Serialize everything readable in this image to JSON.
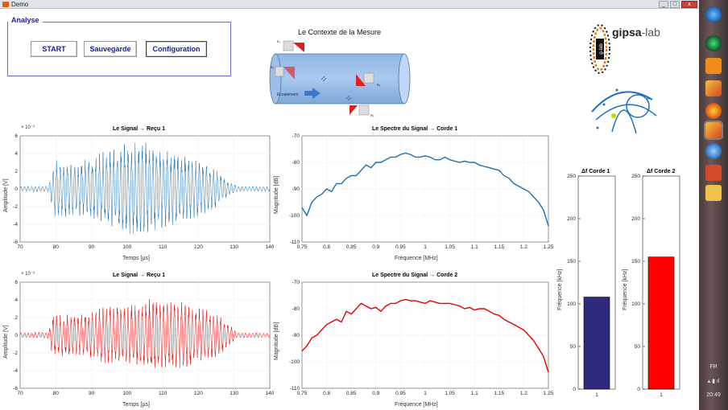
{
  "window": {
    "title": "Demo",
    "minimize": "_",
    "maximize": "□",
    "close": "x"
  },
  "panel": {
    "legend": "Analyse"
  },
  "buttons": {
    "start": "START",
    "save": "Sauvegarde",
    "config": "Configuration"
  },
  "context": {
    "title": "Le Contexte de la Mesure",
    "flow_label": "Ecoulement"
  },
  "logo": {
    "gipsa_a": "gipsa",
    "gipsa_b": "-lab"
  },
  "taskbar": {
    "lang": "FR",
    "time": "20:49"
  },
  "colors": {
    "signal1": "#1f6fb0",
    "signal2": "#e60000",
    "bar1": "#302a7e",
    "bar2": "#ff0000",
    "accent": "#1a1ab0"
  },
  "chart_data": [
    {
      "type": "line",
      "id": "signal1",
      "title": "Le Signal → Reçu 1",
      "xlabel": "Temps [µs]",
      "ylabel": "Amplitude [V]",
      "y_exponent": "× 10⁻³",
      "xlim": [
        70,
        140
      ],
      "ylim": [
        -6,
        6
      ],
      "xticks": [
        70,
        80,
        90,
        100,
        110,
        120,
        130,
        140
      ],
      "yticks": [
        -6,
        -4,
        -2,
        0,
        2,
        4,
        6
      ],
      "grid": true,
      "envelope": {
        "t": [
          70,
          78,
          80,
          85,
          90,
          95,
          100,
          104,
          107,
          110,
          115,
          120,
          125,
          128,
          131,
          140
        ],
        "amp": [
          0.3,
          0.4,
          3.5,
          3.0,
          3.6,
          4.5,
          5.2,
          5.6,
          5.0,
          4.6,
          4.0,
          3.3,
          2.3,
          1.0,
          0.3,
          0.3
        ]
      }
    },
    {
      "type": "line",
      "id": "spectrum1",
      "title": "Le Spectre du Signal → Corde 1",
      "xlabel": "Fréquence [MHz]",
      "ylabel": "Magnitude [dB]",
      "xlim": [
        0.75,
        1.25
      ],
      "ylim": [
        -110,
        -70
      ],
      "xticks": [
        0.75,
        0.8,
        0.85,
        0.9,
        0.95,
        1,
        1.05,
        1.1,
        1.15,
        1.2,
        1.25
      ],
      "yticks": [
        -110,
        -100,
        -90,
        -80,
        -70
      ],
      "grid": true,
      "x": [
        0.75,
        0.76,
        0.77,
        0.78,
        0.79,
        0.8,
        0.81,
        0.82,
        0.83,
        0.84,
        0.85,
        0.86,
        0.87,
        0.88,
        0.89,
        0.9,
        0.91,
        0.92,
        0.93,
        0.94,
        0.95,
        0.96,
        0.97,
        0.98,
        0.99,
        1.0,
        1.01,
        1.02,
        1.03,
        1.04,
        1.05,
        1.06,
        1.07,
        1.08,
        1.09,
        1.1,
        1.11,
        1.12,
        1.13,
        1.14,
        1.15,
        1.16,
        1.17,
        1.18,
        1.19,
        1.2,
        1.21,
        1.22,
        1.23,
        1.24,
        1.25
      ],
      "y": [
        -97,
        -100,
        -95,
        -93,
        -92,
        -90,
        -91,
        -88,
        -88,
        -86,
        -85,
        -85,
        -83,
        -81,
        -82,
        -80,
        -80,
        -79,
        -78,
        -78,
        -77,
        -76.5,
        -77,
        -78,
        -78,
        -77.5,
        -78,
        -79,
        -79,
        -78,
        -79,
        -79.5,
        -80,
        -79.5,
        -80,
        -80,
        -81,
        -81.5,
        -82,
        -82.5,
        -83,
        -85,
        -86,
        -88,
        -89,
        -90,
        -91,
        -93,
        -95,
        -98,
        -104
      ]
    },
    {
      "type": "line",
      "id": "signal2",
      "title": "Le Signal → Reçu 1",
      "xlabel": "Temps [µs]",
      "ylabel": "Amplitude [V]",
      "y_exponent": "× 10⁻³",
      "xlim": [
        70,
        140
      ],
      "ylim": [
        -6,
        6
      ],
      "xticks": [
        70,
        80,
        90,
        100,
        110,
        120,
        130,
        140
      ],
      "yticks": [
        -6,
        -4,
        -2,
        0,
        2,
        4,
        6
      ],
      "grid": true,
      "envelope": {
        "t": [
          70,
          78,
          79,
          82,
          86,
          90,
          95,
          100,
          104,
          107,
          110,
          115,
          120,
          125,
          128,
          131,
          140
        ],
        "amp": [
          0.3,
          0.4,
          2.2,
          2.5,
          2.3,
          2.7,
          3.4,
          3.4,
          3.5,
          4.3,
          4.0,
          3.9,
          3.2,
          2.5,
          1.5,
          0.3,
          0.3
        ]
      }
    },
    {
      "type": "line",
      "id": "spectrum2",
      "title": "Le Spectre du Signal → Corde 2",
      "xlabel": "Fréquence [MHz]",
      "ylabel": "Magnitude [dB]",
      "xlim": [
        0.75,
        1.25
      ],
      "ylim": [
        -110,
        -70
      ],
      "xticks": [
        0.75,
        0.8,
        0.85,
        0.9,
        0.95,
        1,
        1.05,
        1.1,
        1.15,
        1.2,
        1.25
      ],
      "yticks": [
        -110,
        -100,
        -90,
        -80,
        -70
      ],
      "grid": true,
      "x": [
        0.75,
        0.76,
        0.77,
        0.78,
        0.79,
        0.8,
        0.81,
        0.82,
        0.83,
        0.84,
        0.85,
        0.86,
        0.87,
        0.88,
        0.89,
        0.9,
        0.91,
        0.92,
        0.93,
        0.94,
        0.95,
        0.96,
        0.97,
        0.98,
        0.99,
        1.0,
        1.01,
        1.02,
        1.03,
        1.04,
        1.05,
        1.06,
        1.07,
        1.08,
        1.09,
        1.1,
        1.11,
        1.12,
        1.13,
        1.14,
        1.15,
        1.16,
        1.17,
        1.18,
        1.19,
        1.2,
        1.21,
        1.22,
        1.23,
        1.24,
        1.25
      ],
      "y": [
        -96,
        -94,
        -91,
        -90,
        -88,
        -86,
        -85,
        -84,
        -85,
        -81,
        -82,
        -80,
        -78,
        -79,
        -80,
        -79.5,
        -81,
        -79,
        -78,
        -78,
        -77,
        -76.5,
        -77,
        -77,
        -77.5,
        -78,
        -77,
        -77.5,
        -78,
        -78,
        -78,
        -78.5,
        -79,
        -80,
        -79.5,
        -80.5,
        -80,
        -80,
        -81,
        -82,
        -82.5,
        -84,
        -85,
        -86,
        -87,
        -88,
        -90,
        -92,
        -95,
        -98,
        -104
      ]
    },
    {
      "type": "bar",
      "id": "bar1",
      "title": "Δf Corde 1",
      "ylabel": "Fréquence [kHz]",
      "categories": [
        "1"
      ],
      "values": [
        108
      ],
      "ylim": [
        0,
        250
      ],
      "yticks": [
        0,
        50,
        100,
        150,
        200,
        250
      ]
    },
    {
      "type": "bar",
      "id": "bar2",
      "title": "Δf Corde 2",
      "ylabel": "Fréquence [kHz]",
      "categories": [
        "1"
      ],
      "values": [
        155
      ],
      "ylim": [
        0,
        250
      ],
      "yticks": [
        0,
        50,
        100,
        150,
        200,
        250
      ]
    }
  ]
}
